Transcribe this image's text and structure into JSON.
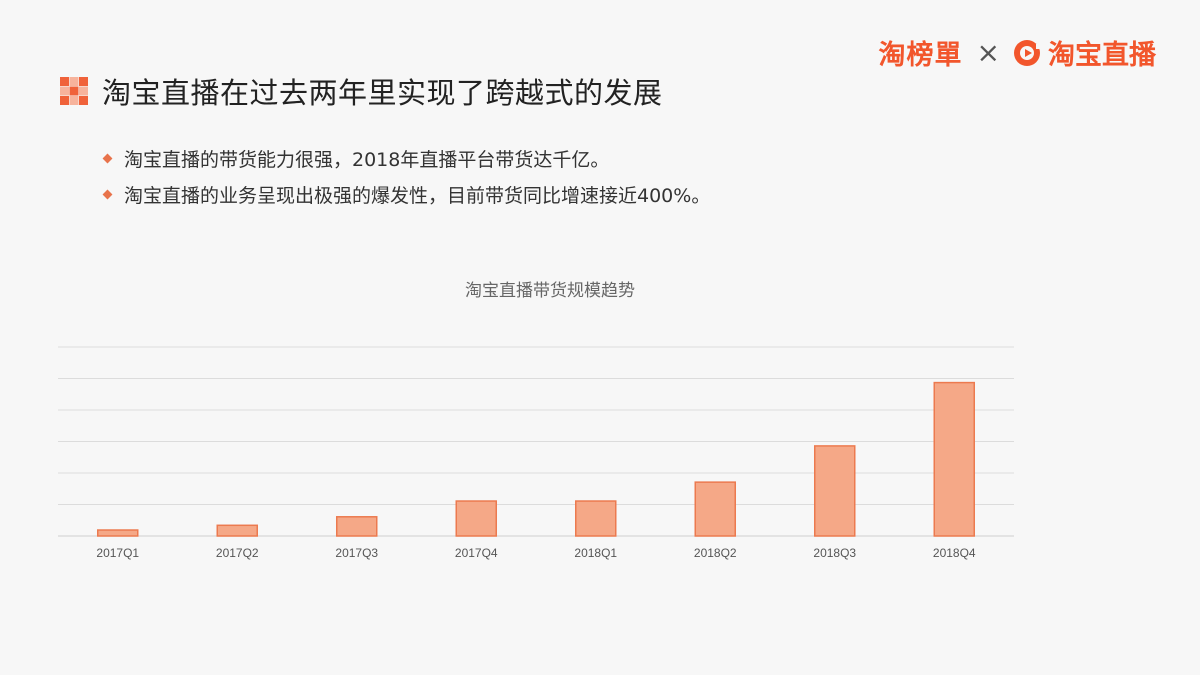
{
  "brand": {
    "left_logo_text": "淘榜單",
    "separator": "×",
    "right_logo_text": "淘宝直播",
    "accent_color": "#f2562c"
  },
  "header": {
    "title": "淘宝直播在过去两年里实现了跨越式的发展",
    "icon": "orange-checker-icon"
  },
  "bullets": [
    {
      "text": "淘宝直播的带货能力很强，2018年直播平台带货达千亿。"
    },
    {
      "text": "淘宝直播的业务呈现出极强的爆发性，目前带货同比增速接近400%。"
    }
  ],
  "chart_data": {
    "type": "bar",
    "title": "淘宝直播带货规模趋势",
    "categories": [
      "2017Q1",
      "2017Q2",
      "2017Q3",
      "2017Q4",
      "2018Q1",
      "2018Q2",
      "2018Q3",
      "2018Q4"
    ],
    "values": [
      0.19,
      0.34,
      0.61,
      1.11,
      1.11,
      1.71,
      2.86,
      4.87
    ],
    "ylim": [
      0,
      6
    ],
    "grid": true,
    "xlabel": "",
    "ylabel": "",
    "bar_color": "#f5a887",
    "bar_edge_color": "#ec7a4f"
  }
}
